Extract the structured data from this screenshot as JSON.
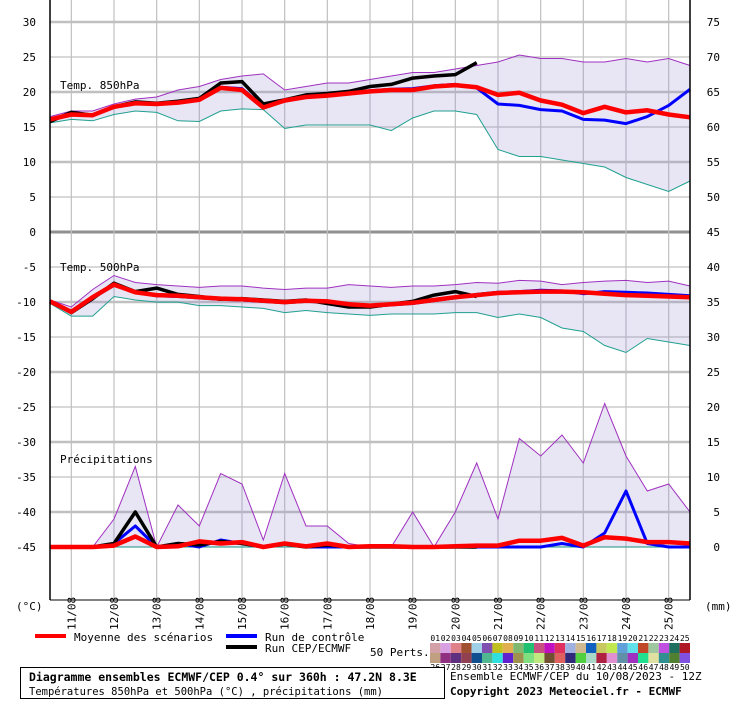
{
  "chart_data": {
    "type": "line",
    "title": "Diagramme ensembles ECMWF/CEP 0.4° sur 360h : 47.2N 8.3E",
    "subtitle": "Températures 850hPa et 500hPa (°C) , précipitations (mm)",
    "run_info": "Ensemble ECMWF/CEP du 10/08/2023 - 12Z",
    "copyright": "Copyright 2023 Meteociel.fr - ECMWF",
    "left_unit": "(°C)",
    "right_unit": "(mm)",
    "left_ticks": [
      "30",
      "25",
      "20",
      "15",
      "10",
      "5",
      "0",
      "-5",
      "-10",
      "-15",
      "-20",
      "-25",
      "-30",
      "-35",
      "-40",
      "-45"
    ],
    "right_ticks": [
      "75",
      "70",
      "65",
      "60",
      "55",
      "50",
      "45",
      "40",
      "35",
      "30",
      "25",
      "20",
      "15",
      "10",
      "5",
      "0"
    ],
    "x_labels": [
      "11/08",
      "12/08",
      "13/08",
      "14/08",
      "15/08",
      "16/08",
      "17/08",
      "18/08",
      "19/08",
      "20/08",
      "21/08",
      "22/08",
      "23/08",
      "24/08",
      "25/08"
    ],
    "hours": [
      0,
      12,
      24,
      36,
      48,
      60,
      72,
      84,
      96,
      108,
      120,
      132,
      144,
      156,
      168,
      180,
      192,
      204,
      216,
      228,
      240,
      252,
      264,
      276,
      288,
      300,
      312,
      324,
      336,
      348,
      360
    ],
    "grid": true,
    "panels": [
      {
        "label": "Temp. 850hPa",
        "unit": "°C",
        "mean": [
          15.8,
          16.5,
          16.4,
          17.6,
          18.1,
          18.0,
          18.2,
          18.6,
          20.3,
          20.0,
          17.5,
          18.5,
          19.0,
          19.2,
          19.5,
          19.8,
          20.0,
          20.0,
          20.5,
          20.7,
          20.4,
          19.3,
          19.6,
          18.5,
          17.9,
          16.7,
          17.6,
          16.8,
          17.1,
          16.5,
          16.1
        ],
        "control": [
          15.6,
          16.6,
          16.4,
          17.5,
          18.2,
          18.0,
          18.3,
          18.6,
          20.4,
          20.2,
          17.6,
          18.4,
          19.0,
          19.2,
          19.5,
          19.9,
          20.1,
          20.2,
          20.6,
          20.8,
          20.3,
          18.0,
          17.8,
          17.2,
          17.0,
          15.8,
          15.7,
          15.2,
          16.2,
          17.8,
          20.1
        ],
        "oper": [
          15.5,
          16.8,
          16.4,
          17.6,
          18.3,
          18.1,
          18.4,
          18.8,
          21.0,
          21.2,
          18.0,
          18.6,
          19.3,
          19.5,
          19.8,
          20.5,
          20.8,
          21.7,
          22.0,
          22.2,
          23.9
        ],
        "members_max": [
          16.2,
          17,
          17,
          18,
          18.7,
          19,
          20,
          20.5,
          21.5,
          22,
          22.3,
          20,
          20.5,
          21,
          21,
          21.5,
          22,
          22.5,
          22.5,
          23,
          23.5,
          24,
          25,
          24.5,
          24.5,
          24,
          24,
          24.5,
          24,
          24.5,
          23.5
        ],
        "members_min": [
          15.3,
          15.8,
          15.6,
          16.5,
          17,
          16.8,
          15.6,
          15.5,
          17,
          17.3,
          17.2,
          14.5,
          15,
          15,
          15,
          15,
          14.2,
          16,
          17,
          17,
          16.5,
          11.5,
          10.5,
          10.5,
          10,
          9.5,
          9,
          7.5,
          6.5,
          5.5,
          7
        ]
      },
      {
        "label": "Temp. 500hPa",
        "unit": "°C",
        "mean": [
          -10.2,
          -11.7,
          -9.6,
          -7.8,
          -8.9,
          -9.3,
          -9.4,
          -9.6,
          -9.8,
          -9.9,
          -10.1,
          -10.3,
          -10.1,
          -10.2,
          -10.6,
          -10.8,
          -10.6,
          -10.4,
          -10.0,
          -9.6,
          -9.3,
          -9.0,
          -8.9,
          -8.8,
          -8.8,
          -8.9,
          -9.1,
          -9.3,
          -9.4,
          -9.5,
          -9.6
        ],
        "control": [
          -10.2,
          -11.8,
          -9.7,
          -7.9,
          -8.9,
          -9.4,
          -9.5,
          -9.7,
          -9.9,
          -10.0,
          -10.2,
          -10.4,
          -10.2,
          -10.3,
          -10.7,
          -10.9,
          -10.7,
          -10.5,
          -10.1,
          -9.7,
          -9.2,
          -8.9,
          -8.8,
          -8.6,
          -8.7,
          -9.1,
          -8.8,
          -8.9,
          -9.0,
          -9.2,
          -9.4
        ],
        "oper": [
          -10.2,
          -11.8,
          -9.8,
          -7.6,
          -8.8,
          -8.3,
          -9.2,
          -9.5,
          -9.9,
          -9.8,
          -10.0,
          -10.2,
          -10.0,
          -10.5,
          -11.0,
          -11.0,
          -10.6,
          -10.2,
          -9.3,
          -8.8,
          -9.5
        ],
        "members_max": [
          -10,
          -11,
          -8.5,
          -6.5,
          -7.5,
          -7.8,
          -8,
          -8.2,
          -8,
          -8,
          -8.3,
          -8.5,
          -8.3,
          -8.3,
          -7.8,
          -8,
          -8.2,
          -8,
          -8,
          -7.8,
          -7.5,
          -7.6,
          -7.2,
          -7.3,
          -7.8,
          -7.5,
          -7.3,
          -7.2,
          -7.5,
          -7.3,
          -8
        ],
        "members_min": [
          -10.5,
          -12.3,
          -12.3,
          -9.5,
          -10,
          -10.3,
          -10.3,
          -10.8,
          -10.8,
          -11,
          -11.2,
          -11.8,
          -11.5,
          -11.8,
          -12,
          -12.2,
          -12,
          -12,
          -12,
          -11.8,
          -11.8,
          -12.5,
          -12,
          -12.5,
          -14,
          -14.5,
          -16.5,
          -17.5,
          -15.5,
          -16,
          -16.5
        ]
      },
      {
        "label": "Précipitations",
        "unit": "mm",
        "mean": [
          0,
          0,
          0,
          0.2,
          1.5,
          0,
          0.1,
          0.8,
          0.5,
          0.7,
          0,
          0.5,
          0.1,
          0.5,
          0,
          0.1,
          0.1,
          0,
          0,
          0.1,
          0.2,
          0.2,
          0.9,
          0.9,
          1.3,
          0.2,
          1.4,
          1.2,
          0.7,
          0.7,
          0.5
        ],
        "control": [
          0,
          0,
          0,
          0.5,
          3,
          0,
          0.5,
          0,
          1,
          0.5,
          0,
          0.5,
          0,
          0,
          0,
          0,
          0,
          0,
          0,
          0,
          0,
          0,
          0,
          0,
          0.5,
          0,
          2,
          8,
          0.5,
          0,
          0
        ],
        "oper": [
          0,
          0,
          0,
          0.5,
          5,
          0,
          0.5,
          0.3,
          0.8,
          0.5,
          0,
          0.4,
          0,
          0.3,
          0,
          0,
          0,
          0,
          0,
          0,
          0
        ],
        "members_max": [
          0,
          0,
          0,
          4,
          11.5,
          0,
          6,
          3,
          10.5,
          9,
          1,
          10.5,
          3,
          3,
          0.5,
          0,
          0,
          5,
          0,
          5,
          12,
          4,
          15.5,
          13,
          16,
          12,
          20.5,
          13,
          8,
          9,
          5
        ],
        "members_min": [
          0,
          0,
          0,
          0,
          0,
          0,
          0,
          0,
          0,
          0,
          0,
          0,
          0,
          0,
          0,
          0,
          0,
          0,
          0,
          0,
          0,
          0,
          0,
          0,
          0,
          0,
          0,
          0,
          0,
          0,
          0
        ]
      }
    ],
    "legend": {
      "mean_label": "Moyenne des scénarios",
      "control_label": "Run de contrôle",
      "oper_label": "Run CEP/ECMWF",
      "perts_label": "50 Perts.",
      "mean_color": "#ff0000",
      "control_color": "#0000ff",
      "oper_color": "#000000",
      "members": [
        {
          "id": "01",
          "color": "#d4a0a8"
        },
        {
          "id": "02",
          "color": "#d8a0e0"
        },
        {
          "id": "03",
          "color": "#e08088"
        },
        {
          "id": "04",
          "color": "#a05030"
        },
        {
          "id": "05",
          "color": "#a0d0e8"
        },
        {
          "id": "06",
          "color": "#8050b0"
        },
        {
          "id": "07",
          "color": "#c0c020"
        },
        {
          "id": "08",
          "color": "#e0b050"
        },
        {
          "id": "09",
          "color": "#80b870"
        },
        {
          "id": "10",
          "color": "#20c070"
        },
        {
          "id": "11",
          "color": "#c85080"
        },
        {
          "id": "12",
          "color": "#c010c0"
        },
        {
          "id": "13",
          "color": "#e03060"
        },
        {
          "id": "14",
          "color": "#a0b0e0"
        },
        {
          "id": "15",
          "color": "#d0b890"
        },
        {
          "id": "16",
          "color": "#1060c0"
        },
        {
          "id": "17",
          "color": "#c8c860"
        },
        {
          "id": "18",
          "color": "#c0e850"
        },
        {
          "id": "19",
          "color": "#60a0d8"
        },
        {
          "id": "20",
          "color": "#60e0e8"
        },
        {
          "id": "21",
          "color": "#c04828"
        },
        {
          "id": "22",
          "color": "#a0c8a0"
        },
        {
          "id": "23",
          "color": "#c050e0"
        },
        {
          "id": "24",
          "color": "#207060"
        },
        {
          "id": "25",
          "color": "#b01828"
        },
        {
          "id": "26",
          "color": "#c0a080"
        },
        {
          "id": "27",
          "color": "#903080"
        },
        {
          "id": "28",
          "color": "#603080"
        },
        {
          "id": "29",
          "color": "#904050"
        },
        {
          "id": "30",
          "color": "#105090"
        },
        {
          "id": "31",
          "color": "#50b890"
        },
        {
          "id": "32",
          "color": "#30e0e0"
        },
        {
          "id": "33",
          "color": "#6020d0"
        },
        {
          "id": "34",
          "color": "#a09050"
        },
        {
          "id": "35",
          "color": "#80e080"
        },
        {
          "id": "36",
          "color": "#c0e880"
        },
        {
          "id": "37",
          "color": "#705030"
        },
        {
          "id": "38",
          "color": "#e06060"
        },
        {
          "id": "39",
          "color": "#302878"
        },
        {
          "id": "40",
          "color": "#50d040"
        },
        {
          "id": "41",
          "color": "#a8d8c8"
        },
        {
          "id": "42",
          "color": "#b02040"
        },
        {
          "id": "43",
          "color": "#e090d0"
        },
        {
          "id": "44",
          "color": "#6090a8"
        },
        {
          "id": "45",
          "color": "#a030c0"
        },
        {
          "id": "46",
          "color": "#20e090"
        },
        {
          "id": "47",
          "color": "#e0e0a0"
        },
        {
          "id": "48",
          "color": "#309090"
        },
        {
          "id": "49",
          "color": "#508030"
        },
        {
          "id": "50",
          "color": "#8050e0"
        }
      ]
    }
  }
}
